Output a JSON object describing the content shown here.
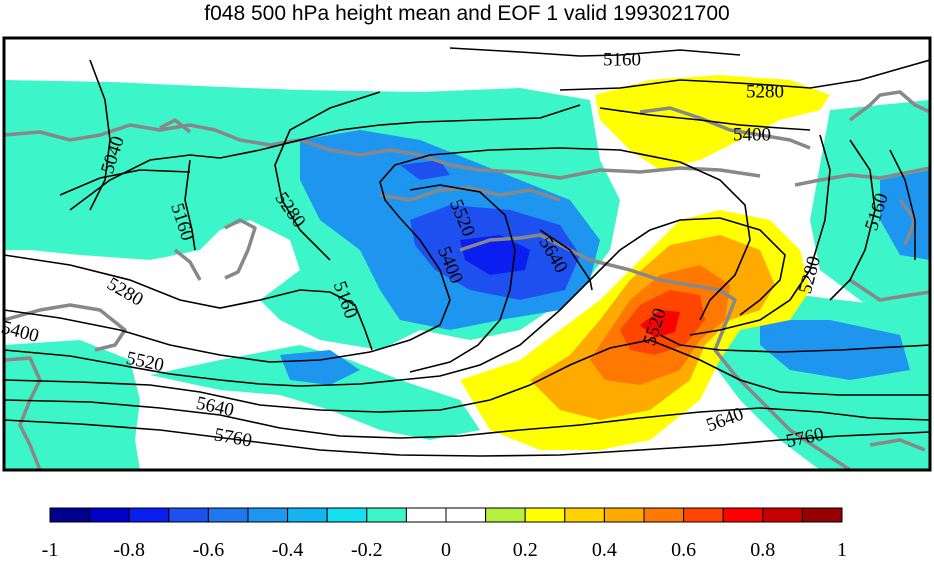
{
  "title": "f048 500 hPa height mean and EOF 1 valid 1993021700",
  "colorbar": {
    "colors": [
      "#00008c",
      "#0000c8",
      "#0a1ef0",
      "#1e50f0",
      "#1e78f0",
      "#1e96f0",
      "#14b4f0",
      "#14e0f0",
      "#3cf5c8",
      "#ffffff",
      "#ffffff",
      "#b4f03c",
      "#ffff00",
      "#ffd200",
      "#ffaa00",
      "#ff7800",
      "#ff4600",
      "#ff0000",
      "#c80000",
      "#960000"
    ],
    "tick_labels": [
      "-1",
      "-0.8",
      "-0.6",
      "-0.4",
      "-0.2",
      "0",
      "0.2",
      "0.4",
      "0.6",
      "0.8",
      "1"
    ]
  },
  "contour_labels": [
    {
      "id": "5160-top",
      "text": "5160"
    },
    {
      "id": "5280-top",
      "text": "5280"
    },
    {
      "id": "5400-ne",
      "text": "5400"
    },
    {
      "id": "5040-w",
      "text": "5040"
    },
    {
      "id": "5160-w",
      "text": "5160"
    },
    {
      "id": "5280-nw",
      "text": "5280"
    },
    {
      "id": "5520-c",
      "text": "5520"
    },
    {
      "id": "5400-c",
      "text": "5400"
    },
    {
      "id": "5640-c",
      "text": "5640"
    },
    {
      "id": "5280-w",
      "text": "5280"
    },
    {
      "id": "5400-w",
      "text": "5400"
    },
    {
      "id": "5160-c",
      "text": "5160"
    },
    {
      "id": "5520-w",
      "text": "5520"
    },
    {
      "id": "5520-e",
      "text": "5520"
    },
    {
      "id": "5640-w",
      "text": "5640"
    },
    {
      "id": "5760-w",
      "text": "5760"
    },
    {
      "id": "5640-e",
      "text": "5640"
    },
    {
      "id": "5760-e",
      "text": "5760"
    },
    {
      "id": "5160-e",
      "text": "5160"
    },
    {
      "id": "5280-e",
      "text": "5280"
    }
  ]
}
